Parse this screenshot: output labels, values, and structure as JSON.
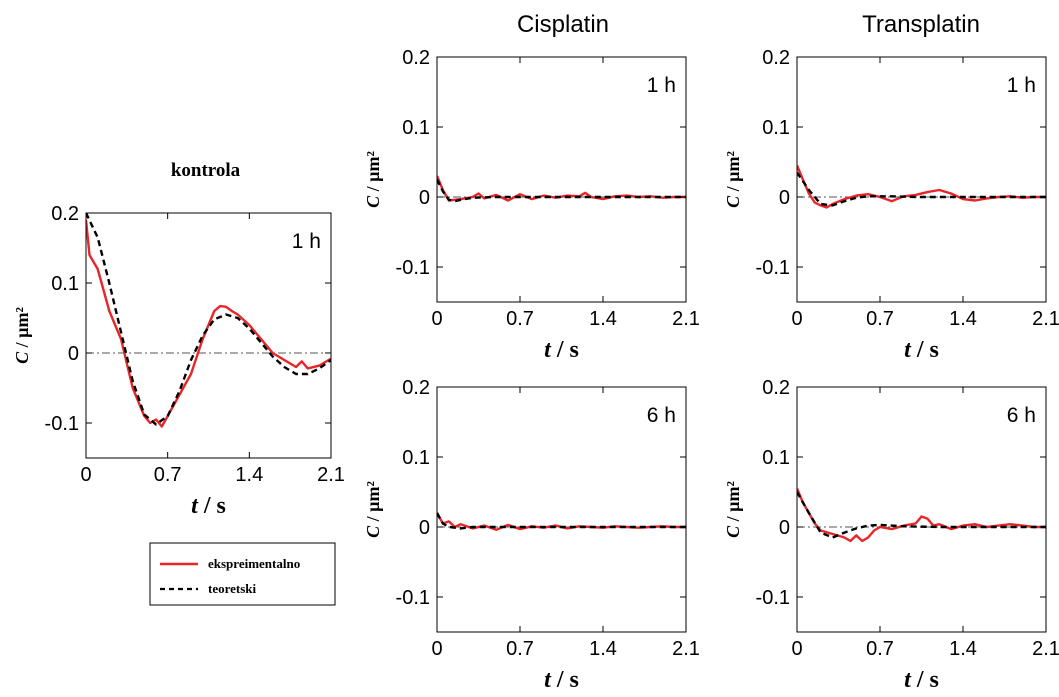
{
  "figure": {
    "column_titles": [
      "Cisplatin",
      "Transplatin"
    ],
    "legend": [
      {
        "label": "ekspreimentalno",
        "color": "#e8262a",
        "style": "solid"
      },
      {
        "label": "teoretski",
        "color": "#000000",
        "style": "dashed"
      }
    ]
  },
  "chart_data": [
    {
      "type": "line",
      "title": "kontrola",
      "panel_label": "1 h",
      "xlabel": "t / s",
      "ylabel": "C / µm²",
      "xlim": [
        0,
        2.1
      ],
      "ylim": [
        -0.15,
        0.2
      ],
      "xticks": [
        "0",
        "0.7",
        "1.4",
        "2.1"
      ],
      "yticks": [
        "0.2",
        "0.1",
        "0",
        "-0.1"
      ],
      "zero_line": true,
      "series": [
        {
          "name": "ekspreimentalno",
          "color": "#e8262a",
          "dashed": false,
          "x": [
            0,
            0.03,
            0.1,
            0.2,
            0.3,
            0.4,
            0.5,
            0.55,
            0.6,
            0.65,
            0.7,
            0.8,
            0.9,
            1.0,
            1.1,
            1.15,
            1.2,
            1.25,
            1.3,
            1.4,
            1.5,
            1.6,
            1.7,
            1.8,
            1.85,
            1.9,
            2.0,
            2.1
          ],
          "y": [
            0.19,
            0.14,
            0.12,
            0.06,
            0.02,
            -0.05,
            -0.09,
            -0.1,
            -0.095,
            -0.105,
            -0.09,
            -0.06,
            -0.03,
            0.02,
            0.06,
            0.067,
            0.066,
            0.06,
            0.055,
            0.04,
            0.02,
            0.0,
            -0.01,
            -0.02,
            -0.012,
            -0.022,
            -0.018,
            -0.008
          ]
        },
        {
          "name": "teoretski",
          "color": "#000000",
          "dashed": true,
          "x": [
            0,
            0.1,
            0.2,
            0.3,
            0.4,
            0.5,
            0.6,
            0.7,
            0.8,
            0.9,
            1.0,
            1.1,
            1.2,
            1.3,
            1.4,
            1.5,
            1.6,
            1.7,
            1.8,
            1.9,
            2.0,
            2.1
          ],
          "y": [
            0.2,
            0.165,
            0.1,
            0.03,
            -0.04,
            -0.088,
            -0.102,
            -0.09,
            -0.055,
            -0.01,
            0.025,
            0.048,
            0.055,
            0.05,
            0.035,
            0.015,
            -0.005,
            -0.02,
            -0.03,
            -0.03,
            -0.022,
            -0.01
          ]
        }
      ]
    },
    {
      "type": "line",
      "title": "",
      "panel_label": "1 h",
      "xlabel": "t / s",
      "ylabel": "C / µm²",
      "xlim": [
        0,
        2.1
      ],
      "ylim": [
        -0.15,
        0.2
      ],
      "xticks": [
        "0",
        "0.7",
        "1.4",
        "2.1"
      ],
      "yticks": [
        "0.2",
        "0.1",
        "0",
        "-0.1"
      ],
      "zero_line": true,
      "series": [
        {
          "name": "ekspreimentalno",
          "color": "#e8262a",
          "dashed": false,
          "x": [
            0,
            0.05,
            0.1,
            0.2,
            0.3,
            0.35,
            0.4,
            0.5,
            0.6,
            0.7,
            0.8,
            0.9,
            1.0,
            1.1,
            1.2,
            1.25,
            1.3,
            1.4,
            1.5,
            1.6,
            1.7,
            1.8,
            1.9,
            2.0,
            2.1
          ],
          "y": [
            0.03,
            0.01,
            -0.005,
            -0.003,
            0.0,
            0.005,
            -0.002,
            0.003,
            -0.005,
            0.004,
            -0.003,
            0.002,
            -0.001,
            0.002,
            0.001,
            0.006,
            0.0,
            -0.003,
            0.001,
            0.002,
            0.0,
            0.001,
            -0.001,
            0.0,
            0.0
          ]
        },
        {
          "name": "teoretski",
          "color": "#000000",
          "dashed": true,
          "x": [
            0,
            0.05,
            0.1,
            0.15,
            0.2,
            0.3,
            0.5,
            0.8,
            1.2,
            1.6,
            2.1
          ],
          "y": [
            0.025,
            0.008,
            -0.004,
            -0.006,
            -0.004,
            -0.001,
            0.0,
            0.0,
            0.0,
            0.0,
            0.0
          ]
        }
      ]
    },
    {
      "type": "line",
      "title": "",
      "panel_label": "1 h",
      "xlabel": "t / s",
      "ylabel": "C / µm²",
      "xlim": [
        0,
        2.1
      ],
      "ylim": [
        -0.15,
        0.2
      ],
      "xticks": [
        "0",
        "0.7",
        "1.4",
        "2.1"
      ],
      "yticks": [
        "0.2",
        "0.1",
        "0",
        "-0.1"
      ],
      "zero_line": true,
      "series": [
        {
          "name": "ekspreimentalno",
          "color": "#e8262a",
          "dashed": false,
          "x": [
            0,
            0.05,
            0.1,
            0.15,
            0.2,
            0.25,
            0.3,
            0.4,
            0.5,
            0.6,
            0.7,
            0.8,
            0.9,
            1.0,
            1.1,
            1.2,
            1.3,
            1.4,
            1.5,
            1.6,
            1.7,
            1.8,
            1.9,
            2.0,
            2.1
          ],
          "y": [
            0.045,
            0.025,
            0.005,
            -0.008,
            -0.012,
            -0.015,
            -0.01,
            -0.003,
            0.002,
            0.004,
            0.0,
            -0.006,
            0.001,
            0.003,
            0.007,
            0.01,
            0.005,
            -0.003,
            -0.005,
            -0.002,
            0.0,
            0.001,
            -0.001,
            0.0,
            0.0
          ]
        },
        {
          "name": "teoretski",
          "color": "#000000",
          "dashed": true,
          "x": [
            0,
            0.1,
            0.2,
            0.3,
            0.4,
            0.5,
            0.6,
            0.8,
            1.0,
            1.4,
            1.8,
            2.1
          ],
          "y": [
            0.035,
            0.01,
            -0.01,
            -0.012,
            -0.006,
            -0.001,
            0.001,
            0.001,
            0.0,
            0.0,
            0.0,
            0.0
          ]
        }
      ]
    },
    {
      "type": "line",
      "title": "",
      "panel_label": "6 h",
      "xlabel": "t / s",
      "ylabel": "C / µm²",
      "xlim": [
        0,
        2.1
      ],
      "ylim": [
        -0.15,
        0.2
      ],
      "xticks": [
        "0",
        "0.7",
        "1.4",
        "2.1"
      ],
      "yticks": [
        "0.2",
        "0.1",
        "0",
        "-0.1"
      ],
      "zero_line": true,
      "series": [
        {
          "name": "ekspreimentalno",
          "color": "#e8262a",
          "dashed": false,
          "x": [
            0,
            0.05,
            0.1,
            0.15,
            0.2,
            0.3,
            0.4,
            0.5,
            0.6,
            0.7,
            0.8,
            0.9,
            1.0,
            1.1,
            1.2,
            1.3,
            1.4,
            1.5,
            1.6,
            1.7,
            1.8,
            1.9,
            2.0,
            2.1
          ],
          "y": [
            0.02,
            0.005,
            0.008,
            0.0,
            0.004,
            -0.002,
            0.002,
            -0.004,
            0.003,
            -0.003,
            0.001,
            -0.001,
            0.002,
            -0.002,
            0.001,
            0.0,
            -0.001,
            0.001,
            0.0,
            -0.001,
            0.0,
            0.001,
            0.0,
            0.0
          ]
        },
        {
          "name": "teoretski",
          "color": "#000000",
          "dashed": true,
          "x": [
            0,
            0.05,
            0.1,
            0.2,
            0.3,
            0.5,
            0.8,
            1.2,
            1.6,
            2.1
          ],
          "y": [
            0.02,
            0.005,
            0.0,
            -0.002,
            0.0,
            0.0,
            0.0,
            0.0,
            0.0,
            0.0
          ]
        }
      ]
    },
    {
      "type": "line",
      "title": "",
      "panel_label": "6 h",
      "xlabel": "t / s",
      "ylabel": "C / µm²",
      "xlim": [
        0,
        2.1
      ],
      "ylim": [
        -0.15,
        0.2
      ],
      "xticks": [
        "0",
        "0.7",
        "1.4",
        "2.1"
      ],
      "yticks": [
        "0.2",
        "0.1",
        "0",
        "-0.1"
      ],
      "zero_line": true,
      "series": [
        {
          "name": "ekspreimentalno",
          "color": "#e8262a",
          "dashed": false,
          "x": [
            0,
            0.05,
            0.1,
            0.15,
            0.2,
            0.3,
            0.4,
            0.45,
            0.5,
            0.55,
            0.6,
            0.65,
            0.7,
            0.8,
            0.9,
            1.0,
            1.05,
            1.1,
            1.15,
            1.2,
            1.3,
            1.4,
            1.5,
            1.6,
            1.7,
            1.8,
            1.9,
            2.0,
            2.1
          ],
          "y": [
            0.055,
            0.035,
            0.02,
            0.005,
            -0.005,
            -0.01,
            -0.015,
            -0.02,
            -0.012,
            -0.02,
            -0.015,
            -0.005,
            0.0,
            -0.003,
            0.002,
            0.005,
            0.015,
            0.012,
            0.002,
            0.004,
            -0.003,
            0.002,
            0.004,
            0.0,
            0.002,
            0.004,
            0.002,
            0.0,
            0.0
          ]
        },
        {
          "name": "teoretski",
          "color": "#000000",
          "dashed": true,
          "x": [
            0,
            0.1,
            0.2,
            0.3,
            0.4,
            0.5,
            0.6,
            0.7,
            0.9,
            1.2,
            1.6,
            2.1
          ],
          "y": [
            0.05,
            0.02,
            -0.008,
            -0.015,
            -0.008,
            -0.002,
            0.002,
            0.003,
            0.001,
            0.0,
            0.0,
            0.0
          ]
        }
      ]
    }
  ]
}
